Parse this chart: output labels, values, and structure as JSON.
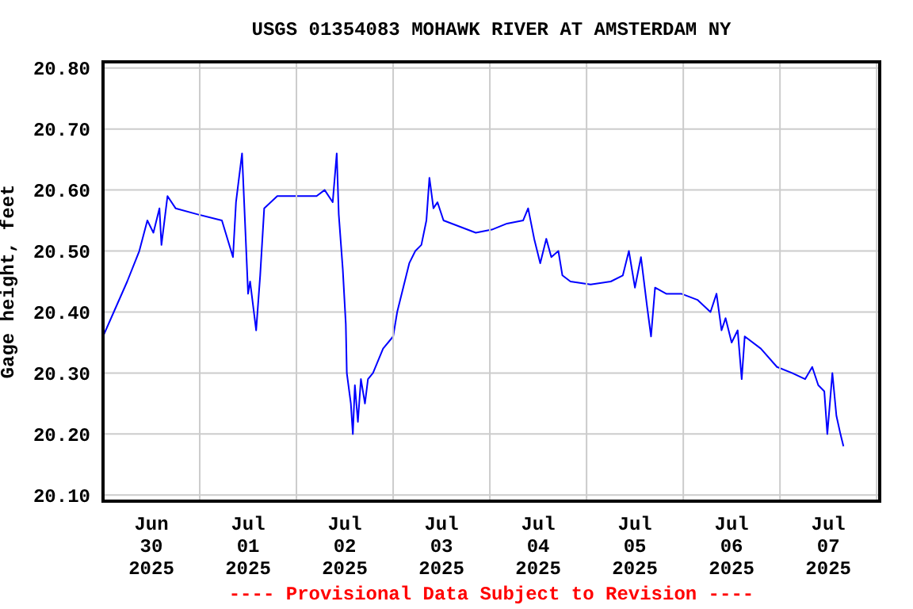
{
  "chart_data": {
    "type": "line",
    "title": "USGS 01354083 MOHAWK RIVER AT AMSTERDAM NY",
    "ylabel": "Gage height, feet",
    "annotations": [
      "---- Provisional Data Subject to Revision ----"
    ],
    "x": [
      "2025-06-30T00:00",
      "2025-06-30T06:00",
      "2025-06-30T09:00",
      "2025-06-30T11:00",
      "2025-06-30T12:30",
      "2025-06-30T14:00",
      "2025-06-30T14:30",
      "2025-06-30T16:00",
      "2025-06-30T18:00",
      "2025-06-30T23:30",
      "2025-07-01T05:30",
      "2025-07-01T08:15",
      "2025-07-01T09:00",
      "2025-07-01T10:30",
      "2025-07-01T12:00",
      "2025-07-01T12:30",
      "2025-07-01T14:00",
      "2025-07-01T15:00",
      "2025-07-01T16:00",
      "2025-07-01T19:15",
      "2025-07-02T05:00",
      "2025-07-02T07:00",
      "2025-07-02T09:00",
      "2025-07-02T10:00",
      "2025-07-02T10:30",
      "2025-07-02T11:30",
      "2025-07-02T12:15",
      "2025-07-02T12:30",
      "2025-07-02T13:30",
      "2025-07-02T14:00",
      "2025-07-02T14:30",
      "2025-07-02T15:15",
      "2025-07-02T16:00",
      "2025-07-02T17:00",
      "2025-07-02T17:45",
      "2025-07-02T19:00",
      "2025-07-02T21:30",
      "2025-07-03T00:00",
      "2025-07-03T01:00",
      "2025-07-03T02:30",
      "2025-07-03T04:00",
      "2025-07-03T05:30",
      "2025-07-03T07:00",
      "2025-07-03T08:15",
      "2025-07-03T09:00",
      "2025-07-03T10:00",
      "2025-07-03T11:00",
      "2025-07-03T12:30",
      "2025-07-03T16:30",
      "2025-07-03T20:30",
      "2025-07-04T00:30",
      "2025-07-04T04:15",
      "2025-07-04T08:15",
      "2025-07-04T09:30",
      "2025-07-04T11:00",
      "2025-07-04T12:30",
      "2025-07-04T14:00",
      "2025-07-04T15:15",
      "2025-07-04T17:00",
      "2025-07-04T18:00",
      "2025-07-04T20:00",
      "2025-07-05T01:00",
      "2025-07-05T06:00",
      "2025-07-05T09:00",
      "2025-07-05T10:30",
      "2025-07-05T12:00",
      "2025-07-05T13:30",
      "2025-07-05T15:00",
      "2025-07-05T16:00",
      "2025-07-05T17:00",
      "2025-07-05T19:45",
      "2025-07-05T23:30",
      "2025-07-06T03:30",
      "2025-07-06T06:45",
      "2025-07-06T08:15",
      "2025-07-06T09:30",
      "2025-07-06T10:30",
      "2025-07-06T12:00",
      "2025-07-06T13:30",
      "2025-07-06T14:30",
      "2025-07-06T15:15",
      "2025-07-06T19:15",
      "2025-07-06T23:15",
      "2025-07-07T03:00",
      "2025-07-07T06:15",
      "2025-07-07T08:00",
      "2025-07-07T09:30",
      "2025-07-07T11:00",
      "2025-07-07T11:45",
      "2025-07-07T13:00",
      "2025-07-07T14:00",
      "2025-07-07T15:00",
      "2025-07-07T15:45"
    ],
    "series": [
      {
        "color": "#0000ff",
        "values": [
          20.36,
          20.45,
          20.5,
          20.55,
          20.53,
          20.57,
          20.51,
          20.59,
          20.57,
          20.56,
          20.55,
          20.49,
          20.58,
          20.66,
          20.43,
          20.45,
          20.37,
          20.46,
          20.57,
          20.59,
          20.59,
          20.6,
          20.58,
          20.66,
          20.56,
          20.47,
          20.38,
          20.3,
          20.25,
          20.2,
          20.28,
          20.22,
          20.29,
          20.25,
          20.29,
          20.3,
          20.34,
          20.36,
          20.4,
          20.44,
          20.48,
          20.5,
          20.51,
          20.55,
          20.62,
          20.57,
          20.58,
          20.55,
          20.54,
          20.53,
          20.535,
          20.545,
          20.55,
          20.57,
          20.52,
          20.48,
          20.52,
          20.49,
          20.5,
          20.46,
          20.45,
          20.445,
          20.45,
          20.46,
          20.5,
          20.44,
          20.49,
          20.41,
          20.36,
          20.44,
          20.43,
          20.43,
          20.42,
          20.4,
          20.43,
          20.37,
          20.39,
          20.35,
          20.37,
          20.29,
          20.36,
          20.34,
          20.31,
          20.3,
          20.29,
          20.31,
          20.28,
          20.27,
          20.2,
          20.3,
          20.23,
          20.2,
          20.18
        ]
      }
    ],
    "xlim": [
      "2025-06-30T00:00",
      "2025-07-08T00:45"
    ],
    "xticks": [
      {
        "value": "2025-06-30T00:00",
        "label": null
      },
      {
        "value": "2025-06-30T12:00",
        "label": "Jun\n30\n2025"
      },
      {
        "value": "2025-07-01T00:00",
        "label": null
      },
      {
        "value": "2025-07-01T12:00",
        "label": "Jul\n01\n2025"
      },
      {
        "value": "2025-07-02T00:00",
        "label": null
      },
      {
        "value": "2025-07-02T12:00",
        "label": "Jul\n02\n2025"
      },
      {
        "value": "2025-07-03T00:00",
        "label": null
      },
      {
        "value": "2025-07-03T12:00",
        "label": "Jul\n03\n2025"
      },
      {
        "value": "2025-07-04T00:00",
        "label": null
      },
      {
        "value": "2025-07-04T12:00",
        "label": "Jul\n04\n2025"
      },
      {
        "value": "2025-07-05T00:00",
        "label": null
      },
      {
        "value": "2025-07-05T12:00",
        "label": "Jul\n05\n2025"
      },
      {
        "value": "2025-07-06T00:00",
        "label": null
      },
      {
        "value": "2025-07-06T12:00",
        "label": "Jul\n06\n2025"
      },
      {
        "value": "2025-07-07T00:00",
        "label": null
      },
      {
        "value": "2025-07-07T12:00",
        "label": "Jul\n07\n2025"
      },
      {
        "value": "2025-07-08T00:00",
        "label": null
      }
    ],
    "ylim": [
      20.09,
      20.81
    ],
    "yticks": [
      {
        "value": 20.1,
        "label": "20.10"
      },
      {
        "value": 20.2,
        "label": "20.20"
      },
      {
        "value": 20.3,
        "label": "20.30"
      },
      {
        "value": 20.4,
        "label": "20.40"
      },
      {
        "value": 20.5,
        "label": "20.50"
      },
      {
        "value": 20.6,
        "label": "20.60"
      },
      {
        "value": 20.7,
        "label": "20.70"
      },
      {
        "value": 20.8,
        "label": "20.80"
      }
    ],
    "grid": true,
    "marker": "none",
    "line_style": "solid"
  }
}
